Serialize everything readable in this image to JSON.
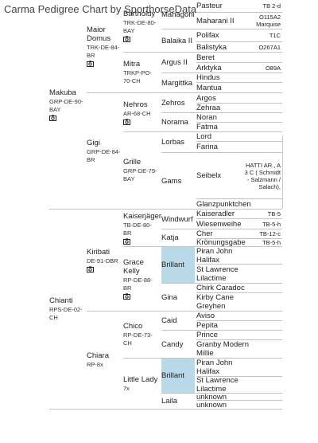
{
  "header": {
    "title": "Carma Pedigree Chart by SporthorseData"
  },
  "generations": [
    [
      {
        "name": "Makuba",
        "reg": "GRP-DE-90-BAY"
      },
      {
        "name": "Chianti",
        "reg": "RPS-DE-02-CH"
      }
    ],
    [
      {
        "name": "Maior Domus",
        "reg": "TRK-DE-84-BR"
      },
      {
        "name": "Gigi",
        "reg": "GRP-DE-84-BR"
      },
      {
        "name": "Kiribati",
        "reg": "DE-91-DBR"
      },
      {
        "name": "Chiara",
        "reg": "RP-8x"
      }
    ],
    [
      {
        "name": "Bartholdy",
        "reg": "TRK-DE-80-BAY"
      },
      {
        "name": "Mitra",
        "reg": "TRKP-PO-70-CH"
      },
      {
        "name": "Nehros",
        "reg": "AR-68-CH"
      },
      {
        "name": "Grille",
        "reg": "GRP-DE-79-BAY"
      },
      {
        "name": "Kaiserjäger",
        "reg": "TB-DE-80-BR"
      },
      {
        "name": "Grace Kelly",
        "reg": "RP-DE-88-BR"
      },
      {
        "name": "Chico",
        "reg": "RP-DE-73-CH"
      },
      {
        "name": "Little Lady",
        "reg": "7x"
      }
    ],
    [
      {
        "name": "Mahagoni"
      },
      {
        "name": "Balaika II"
      },
      {
        "name": "Argus II"
      },
      {
        "name": "Margittka"
      },
      {
        "name": "Zehros"
      },
      {
        "name": "Norama"
      },
      {
        "name": "Lorbas"
      },
      {
        "name": "Gams"
      },
      {
        "name": "Windwurf"
      },
      {
        "name": "Katja"
      },
      {
        "name": "Brillant"
      },
      {
        "name": "Gina"
      },
      {
        "name": "Caid"
      },
      {
        "name": "Candy"
      },
      {
        "name": "Brillant"
      },
      {
        "name": "Laila"
      }
    ],
    [
      {
        "name": "Pasteur",
        "note": "TB 2-d"
      },
      {
        "name": "Maharani II",
        "note": "O115A2 Marquise"
      },
      {
        "name": "Polifax",
        "note": "T1C"
      },
      {
        "name": "Balistyka",
        "note": "O267A1"
      },
      {
        "name": "Beret"
      },
      {
        "name": "Arktyka",
        "note": "O89A"
      },
      {
        "name": "Hindus"
      },
      {
        "name": "Mantua"
      },
      {
        "name": "Argos"
      },
      {
        "name": "Zehraa"
      },
      {
        "name": "Noran"
      },
      {
        "name": "Fatma"
      },
      {
        "name": "Lord"
      },
      {
        "name": "Farina"
      },
      {
        "name": "Seibelx",
        "note": "HATTI AR., A 3 C ( Schmidt - Salzmann / Salach),"
      },
      {
        "name": "Glanzpunktchen"
      },
      {
        "name": "Kaiseradler",
        "note": "TB-5"
      },
      {
        "name": "Wiesenweihe",
        "note": "TB-5-h"
      },
      {
        "name": "Cher",
        "note": "TB-12-c"
      },
      {
        "name": "Krönungsgabe",
        "note": "TB-5-h"
      },
      {
        "name": "Piran John Halifax"
      },
      {
        "name": "St Lawrence Lilactime"
      },
      {
        "name": "Chirk Caradoc"
      },
      {
        "name": "Kirby Cane Greyhen"
      },
      {
        "name": "Aviso"
      },
      {
        "name": "Pepita"
      },
      {
        "name": "Prince"
      },
      {
        "name": "Granby Modern Millie"
      },
      {
        "name": "Piran John Halifax"
      },
      {
        "name": "St Lawrence Lilactime"
      },
      {
        "name": "unknown"
      },
      {
        "name": "unknown"
      }
    ]
  ]
}
